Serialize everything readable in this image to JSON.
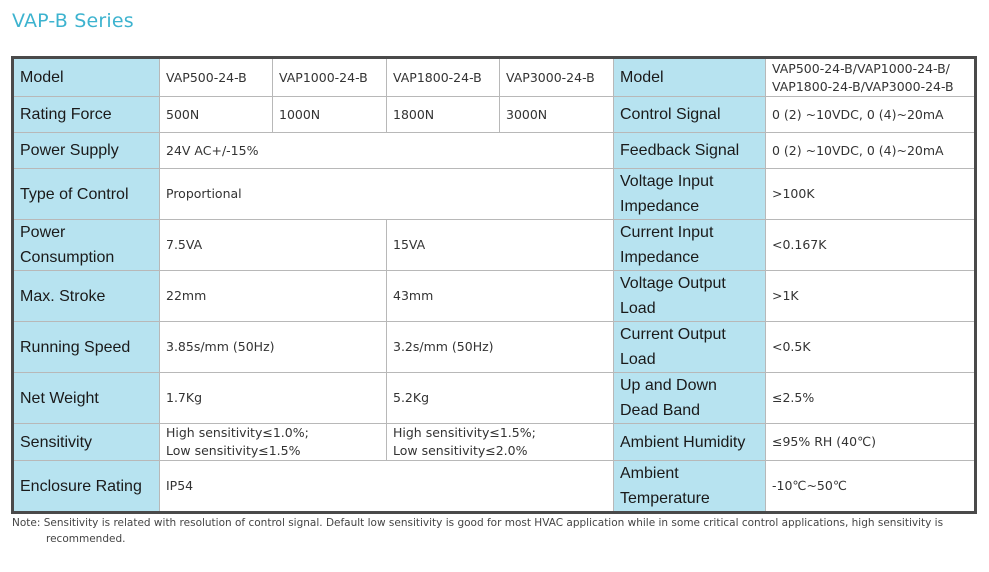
{
  "title": "VAP-B Series",
  "rows": [
    {
      "label": "Model",
      "cells": [
        "VAP500-24-B",
        "VAP1000-24-B",
        "VAP1800-24-B",
        "VAP3000-24-B"
      ],
      "rlabel": "Model",
      "rvalue": "VAP500-24-B/VAP1000-24-B/",
      "rvalue2": "VAP1800-24-B/VAP3000-24-B"
    },
    {
      "label": "Rating Force",
      "cells": [
        "500N",
        "1000N",
        "1800N",
        "3000N"
      ],
      "rlabel": "Control Signal",
      "rvalue": "0 (2) ~10VDC, 0 (4)~20mA"
    },
    {
      "label": "Power Supply",
      "value": "24V AC+/-15%",
      "rlabel": "Feedback Signal",
      "rvalue": "0 (2) ~10VDC, 0 (4)~20mA"
    },
    {
      "label": "Type of Control",
      "value": "Proportional",
      "rlabel": "Voltage Input Impedance",
      "rvalue": ">100K"
    },
    {
      "label": "Power Consumption",
      "left": "7.5VA",
      "right": "15VA",
      "rlabel": "Current Input Impedance",
      "rvalue": "<0.167K"
    },
    {
      "label": "Max. Stroke",
      "left": "22mm",
      "right": "43mm",
      "rlabel": "Voltage Output Load",
      "rvalue": ">1K"
    },
    {
      "label": "Running Speed",
      "left": "3.85s/mm (50Hz)",
      "right": "3.2s/mm (50Hz)",
      "rlabel": "Current Output Load",
      "rvalue": "<0.5K"
    },
    {
      "label": "Net Weight",
      "left": "1.7Kg",
      "right": "5.2Kg",
      "rlabel": "Up and Down Dead Band",
      "rvalue": "≤2.5%"
    },
    {
      "label": "Sensitivity",
      "left": "High sensitivity≤1.0%;",
      "left2": "Low sensitivity≤1.5%",
      "right": "High sensitivity≤1.5%;",
      "right2": "Low sensitivity≤2.0%",
      "rlabel": "Ambient Humidity",
      "rvalue": "≤95% RH (40℃)"
    },
    {
      "label": "Enclosure Rating",
      "value": "IP54",
      "rlabel": "Ambient Temperature",
      "rvalue": "-10℃~50℃"
    }
  ],
  "note": "Note: Sensitivity is related with resolution of control signal. Default low sensitivity is good for most HVAC application while in some critical control applications, high sensitivity is",
  "note2": "recommended."
}
